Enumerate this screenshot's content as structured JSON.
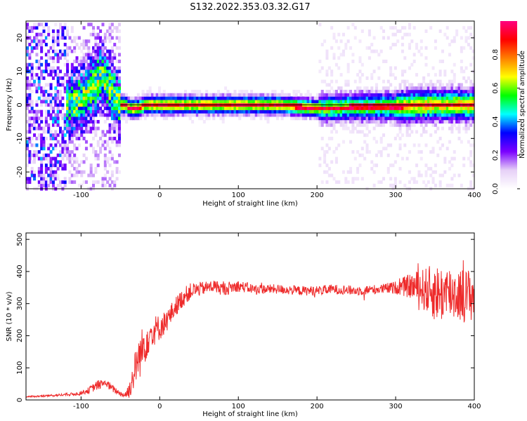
{
  "figure": {
    "title": "S132.2022.353.03.32.G17"
  },
  "chart_data": [
    {
      "type": "heatmap",
      "title": "",
      "xlabel": "Height of straight line (km)",
      "ylabel": "Frequency (Hz)",
      "xlim": [
        -170,
        400
      ],
      "ylim": [
        -25,
        25
      ],
      "xticks": [
        -100,
        0,
        100,
        200,
        300,
        400
      ],
      "yticks": [
        -20,
        -10,
        0,
        10,
        20
      ],
      "grid": false,
      "colorbar": {
        "label": "Normalized spectral amplitude",
        "range": [
          0,
          1
        ],
        "ticks": [
          "0.0",
          "0.2",
          "0.4",
          "0.6",
          "0.8"
        ],
        "colormap": [
          "#ffffff",
          "#e6d0f7",
          "#7a00ff",
          "#0000ff",
          "#00ffff",
          "#00ff00",
          "#ffff00",
          "#ff8000",
          "#ff0000",
          "#ff0080"
        ]
      },
      "ridge": {
        "x": [
          -120,
          -105,
          -95,
          -85,
          -75,
          -70,
          -65,
          -60,
          -55,
          -50,
          -45,
          -40,
          -30,
          -20,
          0,
          50,
          100,
          150,
          200,
          250,
          300,
          350,
          400
        ],
        "y": [
          0,
          1,
          3,
          6,
          9,
          7,
          5,
          3,
          1,
          0,
          0,
          -1,
          -1,
          0,
          0,
          0,
          0,
          0,
          -1,
          -0.5,
          -0.5,
          0,
          0
        ]
      }
    },
    {
      "type": "line",
      "title": "",
      "xlabel": "Height of straight line (km)",
      "ylabel": "SNR (10 * v/v)",
      "xlim": [
        -170,
        400
      ],
      "ylim": [
        0,
        520
      ],
      "xticks": [
        -100,
        0,
        100,
        200,
        300,
        400
      ],
      "yticks": [
        0,
        100,
        200,
        300,
        400,
        500
      ],
      "grid": false,
      "color": "#ee2b2b",
      "series": [
        {
          "x": [
            -170,
            -150,
            -130,
            -110,
            -100,
            -90,
            -80,
            -70,
            -60,
            -50,
            -45,
            -40,
            -35,
            -30,
            -25,
            -20,
            -15,
            -10,
            -5,
            0,
            10,
            20,
            30,
            40,
            50,
            60,
            70,
            80,
            90,
            100,
            120,
            150,
            180,
            200,
            220,
            250,
            280,
            300,
            320,
            330,
            340,
            350,
            360,
            370,
            380,
            390,
            400
          ],
          "values": [
            10,
            12,
            15,
            18,
            22,
            30,
            45,
            55,
            35,
            20,
            15,
            25,
            60,
            110,
            140,
            170,
            200,
            210,
            220,
            225,
            250,
            290,
            320,
            340,
            345,
            350,
            355,
            345,
            350,
            355,
            345,
            345,
            340,
            340,
            345,
            340,
            345,
            350,
            355,
            350,
            340,
            335,
            330,
            335,
            330,
            325,
            330
          ],
          "noise": [
            2,
            3,
            4,
            5,
            6,
            10,
            15,
            15,
            12,
            8,
            10,
            25,
            40,
            60,
            70,
            70,
            60,
            50,
            45,
            40,
            35,
            30,
            30,
            25,
            22,
            20,
            20,
            20,
            20,
            18,
            15,
            15,
            15,
            15,
            15,
            15,
            15,
            20,
            40,
            55,
            75,
            90,
            90,
            90,
            85,
            85,
            85
          ]
        }
      ]
    }
  ]
}
